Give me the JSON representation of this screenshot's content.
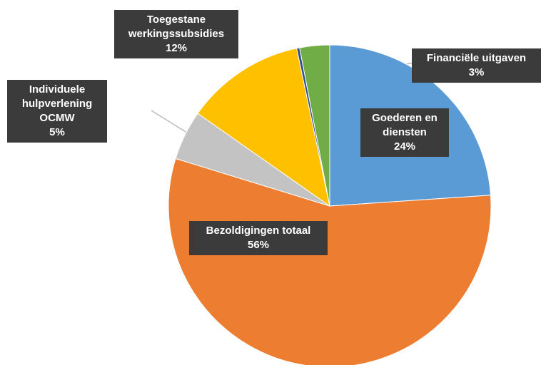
{
  "chart_data": {
    "type": "pie",
    "categories": [
      "Goederen en diensten",
      "Bezoldigingen totaal",
      "Individuele hulpverlening OCMW",
      "Toegestane werkingssubsidies",
      null,
      "Financiële uitgaven"
    ],
    "values": [
      24,
      56,
      5,
      12,
      0.3,
      3
    ],
    "value_labels": [
      "24%",
      "56%",
      "5%",
      "12%",
      null,
      "3%"
    ],
    "colors": [
      "#5b9bd5",
      "#ed7d31",
      "#c3c3c3",
      "#ffc000",
      "#2f4f8a",
      "#70ad47"
    ]
  }
}
